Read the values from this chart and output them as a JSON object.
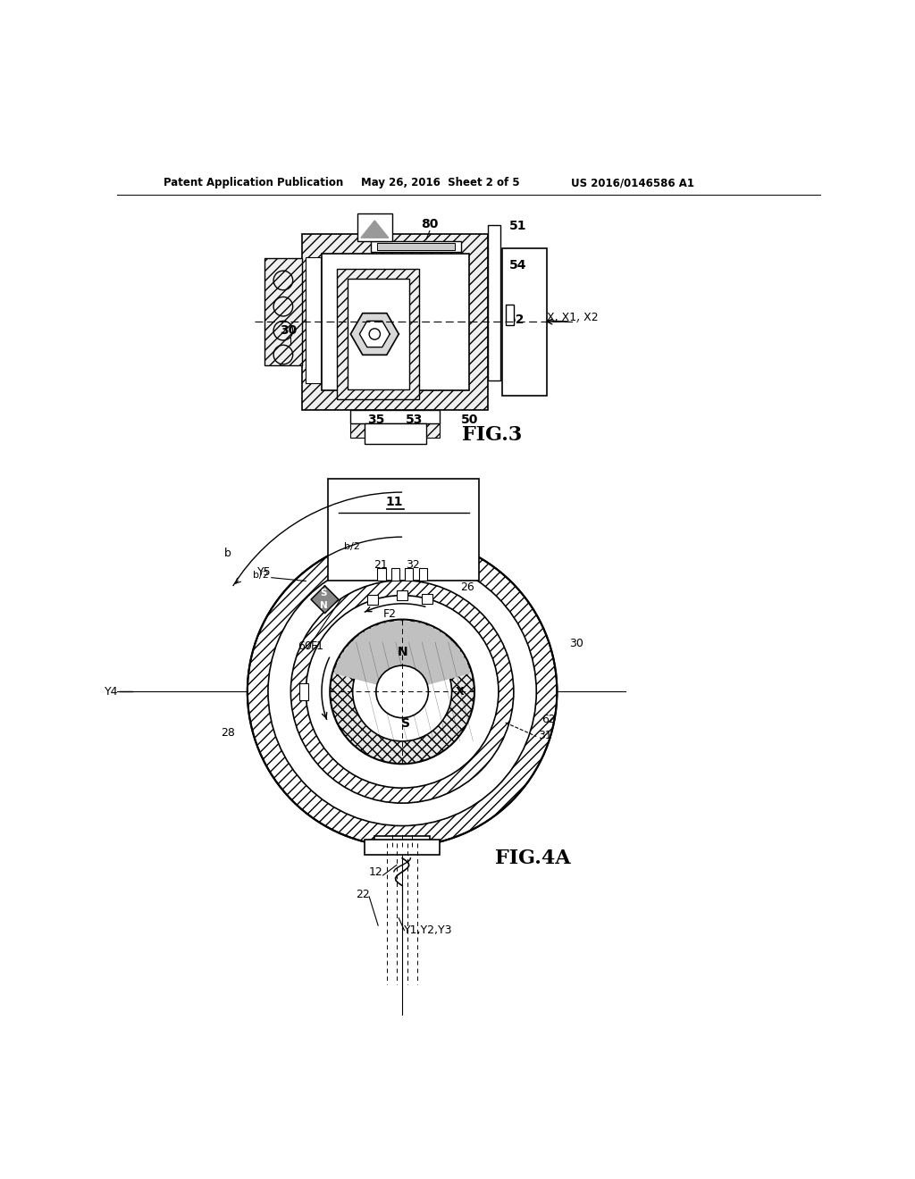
{
  "bg_color": "#ffffff",
  "header_left": "Patent Application Publication",
  "header_mid": "May 26, 2016  Sheet 2 of 5",
  "header_right": "US 2016/0146586 A1",
  "fig3_label": "FIG.3",
  "fig4a_label": "FIG.4A"
}
